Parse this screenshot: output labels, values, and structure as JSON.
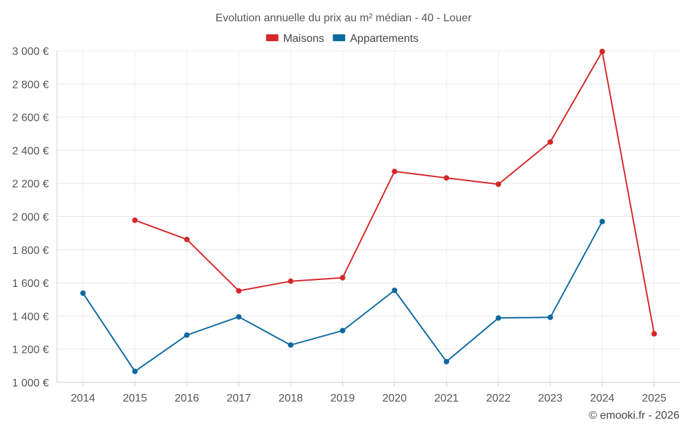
{
  "chart_data": {
    "type": "line",
    "title": "Evolution annuelle du prix au m² médian - 40 - Louer",
    "categories": [
      "2014",
      "2015",
      "2016",
      "2017",
      "2018",
      "2019",
      "2020",
      "2021",
      "2022",
      "2023",
      "2024",
      "2025"
    ],
    "series": [
      {
        "name": "Maisons",
        "color": "#d62728",
        "values": [
          null,
          1978,
          1862,
          1552,
          1610,
          1631,
          2272,
          2233,
          2195,
          2450,
          2996,
          1293
        ]
      },
      {
        "name": "Appartements",
        "color": "#0c6aa0",
        "values": [
          1538,
          1066,
          1285,
          1395,
          1225,
          1312,
          1555,
          1125,
          1388,
          1392,
          1970,
          null
        ]
      }
    ],
    "ylim": [
      1000,
      3000
    ],
    "yticks": [
      1000,
      1200,
      1400,
      1600,
      1800,
      2000,
      2200,
      2400,
      2600,
      2800,
      3000
    ],
    "ytick_labels": [
      "1 000 €",
      "1 200 €",
      "1 400 €",
      "1 600 €",
      "1 800 €",
      "2 000 €",
      "2 200 €",
      "2 400 €",
      "2 600 €",
      "2 800 €",
      "3 000 €"
    ],
    "xlabel": "",
    "ylabel": "",
    "grid": true,
    "legend_position": "top-center"
  },
  "credit": "© emooki.fr - 2026"
}
